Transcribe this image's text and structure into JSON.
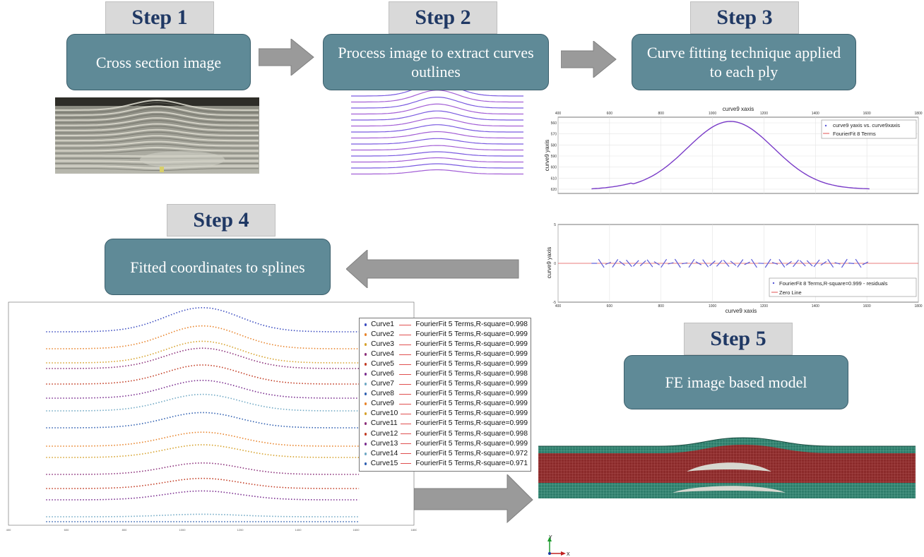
{
  "steps": [
    {
      "label": "Step 1",
      "box": "Cross section image"
    },
    {
      "label": "Step 2",
      "box": "Process image to extract curves outlines"
    },
    {
      "label": "Step 3",
      "box": "Curve fitting technique applied to each ply"
    },
    {
      "label": "Step 4",
      "box": "Fitted coordinates to splines"
    },
    {
      "label": "Step 5",
      "box": "FE image based model"
    }
  ],
  "fit_plot": {
    "title": "curve9 xaxis",
    "ylabel": "curve9 yaxis",
    "x_ticks": [
      "400",
      "600",
      "800",
      "1000",
      "1200",
      "1400",
      "1600",
      "1800"
    ],
    "y_ticks": [
      "560",
      "570",
      "580",
      "590",
      "600",
      "610",
      "620"
    ],
    "legend": [
      "curve9 yaxis vs. curve9xaxis",
      "FourierFit 8 Terms"
    ],
    "xlim": [
      400,
      1800
    ]
  },
  "residual_plot": {
    "xlabel": "curve9 xaxis",
    "ylabel": "curve9 yaxis",
    "x_ticks": [
      "400",
      "600",
      "800",
      "1000",
      "1200",
      "1400",
      "1600",
      "1800"
    ],
    "y_ticks": [
      "5",
      "0",
      "-5"
    ],
    "legend": [
      "FourierFit 8 Terms,R-square=0.999 - residuals",
      "Zero Line"
    ]
  },
  "splines_plot": {
    "x_ticks": [
      "400",
      "600",
      "800",
      "1000",
      "1200",
      "1400",
      "1600",
      "1800"
    ],
    "legend": [
      {
        "curve": "Curve1",
        "fit": "FourierFit 5 Terms,R-square=0.998",
        "color": "#3b4cc0"
      },
      {
        "curve": "Curve2",
        "fit": "FourierFit 5 Terms,R-square=0.999",
        "color": "#e8832a"
      },
      {
        "curve": "Curve3",
        "fit": "FourierFit 5 Terms,R-square=0.999",
        "color": "#d6a12a"
      },
      {
        "curve": "Curve4",
        "fit": "FourierFit 5 Terms,R-square=0.999",
        "color": "#8b2f7a"
      },
      {
        "curve": "Curve5",
        "fit": "FourierFit 5 Terms,R-square=0.999",
        "color": "#c23b22"
      },
      {
        "curve": "Curve6",
        "fit": "FourierFit 5 Terms,R-square=0.998",
        "color": "#7a2d8f"
      },
      {
        "curve": "Curve7",
        "fit": "FourierFit 5 Terms,R-square=0.999",
        "color": "#6fa8c4"
      },
      {
        "curve": "Curve8",
        "fit": "FourierFit 5 Terms,R-square=0.999",
        "color": "#2f5fb0"
      },
      {
        "curve": "Curve9",
        "fit": "FourierFit 5 Terms,R-square=0.999",
        "color": "#e8832a"
      },
      {
        "curve": "Curve10",
        "fit": "FourierFit 5 Terms,R-square=0.999",
        "color": "#d6a12a"
      },
      {
        "curve": "Curve11",
        "fit": "FourierFit 5 Terms,R-square=0.999",
        "color": "#8b2f7a"
      },
      {
        "curve": "Curve12",
        "fit": "FourierFit 5 Terms,R-square=0.998",
        "color": "#c23b22"
      },
      {
        "curve": "Curve13",
        "fit": "FourierFit 5 Terms,R-square=0.999",
        "color": "#7a2d8f"
      },
      {
        "curve": "Curve14",
        "fit": "FourierFit 5 Terms,R-square=0.972",
        "color": "#6fa8c4"
      },
      {
        "curve": "Curve15",
        "fit": "FourierFit 5 Terms,R-square=0.971",
        "color": "#2f5fb0"
      }
    ]
  },
  "axis_triad": {
    "y": "Y",
    "x": "X"
  },
  "colors": {
    "box": "#5f8a97",
    "step_text": "#1f3864",
    "arrow": "#9a9a9a",
    "mesh_red": "#8b2a2a",
    "mesh_green": "#2e7d6b"
  }
}
